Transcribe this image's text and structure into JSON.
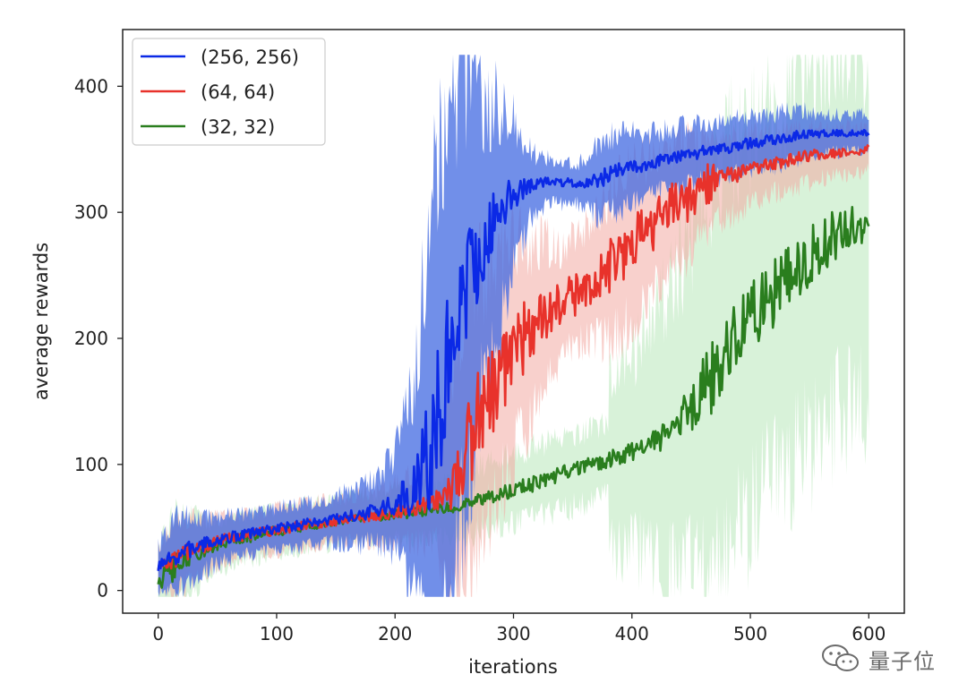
{
  "chart_data": {
    "type": "line",
    "title": "",
    "xlabel": "iterations",
    "ylabel": "average rewards",
    "xlim": [
      -30,
      630
    ],
    "ylim": [
      -18,
      445
    ],
    "xticks": [
      0,
      100,
      200,
      300,
      400,
      500,
      600
    ],
    "yticks": [
      0,
      100,
      200,
      300,
      400
    ],
    "grid": false,
    "legend_position": "top-left",
    "series": [
      {
        "name": "(256, 256)",
        "color": "#0b29e6",
        "band_color": "#4169e1",
        "x": [
          0,
          25,
          50,
          75,
          100,
          125,
          150,
          175,
          200,
          215,
          230,
          245,
          260,
          280,
          300,
          330,
          360,
          400,
          430,
          460,
          500,
          550,
          600
        ],
        "values": [
          18,
          32,
          40,
          45,
          49,
          53,
          56,
          61,
          68,
          80,
          110,
          180,
          245,
          285,
          318,
          325,
          322,
          336,
          342,
          348,
          355,
          362,
          363
        ]
      },
      {
        "name": "(64, 64)",
        "color": "#e8322b",
        "band_color": "#f2a9a2",
        "x": [
          0,
          25,
          50,
          75,
          100,
          125,
          150,
          175,
          200,
          225,
          250,
          260,
          280,
          300,
          325,
          350,
          375,
          400,
          430,
          460,
          500,
          550,
          600
        ],
        "values": [
          18,
          31,
          39,
          44,
          48,
          52,
          55,
          58,
          62,
          68,
          80,
          120,
          155,
          190,
          220,
          235,
          250,
          275,
          300,
          320,
          335,
          345,
          350
        ]
      },
      {
        "name": "(32, 32)",
        "color": "#2a7e1e",
        "band_color": "#b8e8ba",
        "x": [
          0,
          25,
          50,
          75,
          100,
          150,
          200,
          250,
          300,
          350,
          400,
          425,
          450,
          475,
          500,
          525,
          550,
          575,
          600
        ],
        "values": [
          7,
          28,
          36,
          42,
          47,
          55,
          60,
          67,
          80,
          95,
          110,
          120,
          145,
          180,
          215,
          240,
          265,
          285,
          290
        ]
      }
    ]
  },
  "watermark": {
    "text": "量子位",
    "icon": "wechat-icon"
  }
}
